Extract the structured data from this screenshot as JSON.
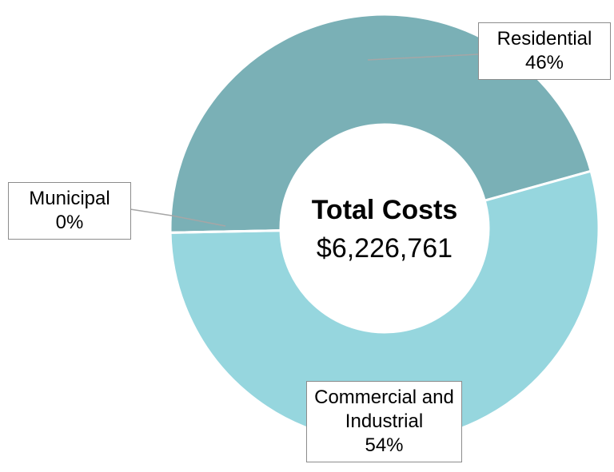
{
  "chart_data": {
    "type": "pie",
    "title": "Total Costs",
    "subtitle": "$6,226,761",
    "categories": [
      "Residential",
      "Commercial and Industrial",
      "Municipal"
    ],
    "values": [
      46,
      54,
      0
    ],
    "value_labels": [
      "46%",
      "54%",
      "0%"
    ],
    "colors": [
      "#7ab0b6",
      "#96d6de",
      "#b9e0e4"
    ]
  }
}
